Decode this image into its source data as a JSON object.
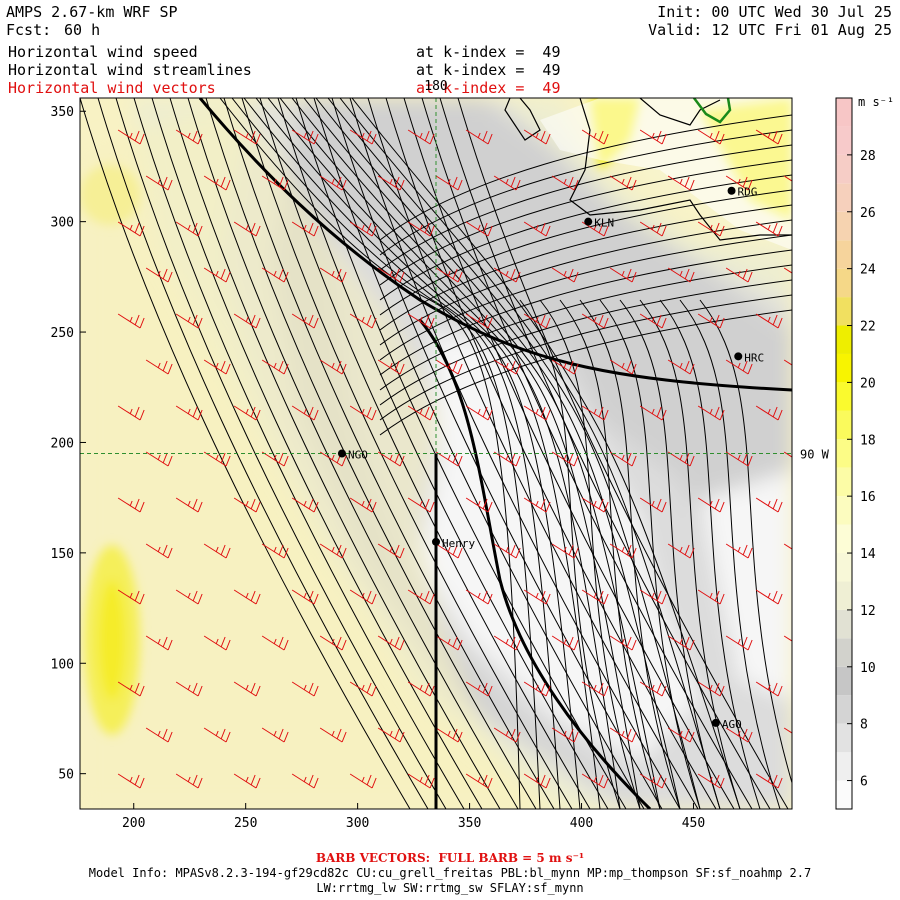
{
  "header": {
    "model_title": "AMPS 2.67-km WRF SP",
    "forecast_label": "Fcst:",
    "forecast_hours": "60 h",
    "init": "Init: 00 UTC Wed 30 Jul 25",
    "valid": "Valid: 12 UTC Fri 01 Aug 25",
    "fields": [
      {
        "label": "Horizontal wind speed",
        "level": "at k-index =  49",
        "color": "#000000"
      },
      {
        "label": "Horizontal wind streamlines",
        "level": "at k-index =  49",
        "color": "#000000"
      },
      {
        "label": "Horizontal wind vectors",
        "level": "at k-index =  49",
        "color": "#e01010"
      }
    ]
  },
  "map": {
    "x_ticks": [
      200,
      250,
      300,
      350,
      400,
      450
    ],
    "y_ticks": [
      50,
      100,
      150,
      200,
      250,
      300,
      350
    ],
    "x_range": [
      176,
      494
    ],
    "y_range": [
      34,
      356
    ],
    "meridian_label": "180",
    "meridian_x": 335,
    "parallel_label": "90 W",
    "parallel_y": 195,
    "stations": [
      {
        "name": "NGO",
        "x": 293,
        "y": 195
      },
      {
        "name": "Henry",
        "x": 335,
        "y": 155
      },
      {
        "name": "KLN",
        "x": 403,
        "y": 300
      },
      {
        "name": "RDG",
        "x": 467,
        "y": 314
      },
      {
        "name": "HRC",
        "x": 470,
        "y": 239
      },
      {
        "name": "AGO",
        "x": 460,
        "y": 73
      }
    ]
  },
  "colorbar": {
    "unit": "m s⁻¹",
    "range": [
      5,
      30
    ],
    "ticks": [
      6,
      8,
      10,
      12,
      14,
      16,
      18,
      20,
      22,
      24,
      26,
      28
    ],
    "bands": [
      {
        "from": 5,
        "to": 6,
        "color": "#fbfbfb"
      },
      {
        "from": 6,
        "to": 7,
        "color": "#efefef"
      },
      {
        "from": 7,
        "to": 8,
        "color": "#e2e2e2"
      },
      {
        "from": 8,
        "to": 9,
        "color": "#d4d4d4"
      },
      {
        "from": 9,
        "to": 10,
        "color": "#c6c6c6"
      },
      {
        "from": 10,
        "to": 11,
        "color": "#d2d2cc"
      },
      {
        "from": 11,
        "to": 12,
        "color": "#e1e1d3"
      },
      {
        "from": 12,
        "to": 13,
        "color": "#efefd4"
      },
      {
        "from": 13,
        "to": 14,
        "color": "#f8f8d8"
      },
      {
        "from": 14,
        "to": 15,
        "color": "#fdfdd6"
      },
      {
        "from": 15,
        "to": 16,
        "color": "#fcfcbf"
      },
      {
        "from": 16,
        "to": 17,
        "color": "#fcfca6"
      },
      {
        "from": 17,
        "to": 18,
        "color": "#fcfc86"
      },
      {
        "from": 18,
        "to": 19,
        "color": "#fafa5c"
      },
      {
        "from": 19,
        "to": 20,
        "color": "#fafa2e"
      },
      {
        "from": 20,
        "to": 21,
        "color": "#f8f400"
      },
      {
        "from": 21,
        "to": 22,
        "color": "#eeee00"
      },
      {
        "from": 22,
        "to": 23,
        "color": "#f1e060"
      },
      {
        "from": 23,
        "to": 24,
        "color": "#f5d888"
      },
      {
        "from": 24,
        "to": 25,
        "color": "#f6d49c"
      },
      {
        "from": 25,
        "to": 26,
        "color": "#f6d3b0"
      },
      {
        "from": 26,
        "to": 27,
        "color": "#f6d0bc"
      },
      {
        "from": 27,
        "to": 28,
        "color": "#f6cdc6"
      },
      {
        "from": 28,
        "to": 29,
        "color": "#f7caca"
      },
      {
        "from": 29,
        "to": 30,
        "color": "#f7c6c6"
      }
    ]
  },
  "colors": {
    "barb": "#e01010",
    "streamline": "#000000",
    "coast": "#000000",
    "gridline": "#2f8f2f"
  },
  "footer": {
    "barb_legend": "BARB VECTORS:  FULL BARB = 5 m s⁻¹",
    "model_info_1": "Model Info: MPASv8.2.3-194-gf29cd82c CU:cu_grell_freitas PBL:bl_mynn MP:mp_thompson SF:sf_noahmp 2.7",
    "model_info_2": "LW:rrtmg_lw SW:rrtmg_sw SFLAY:sf_mynn"
  }
}
